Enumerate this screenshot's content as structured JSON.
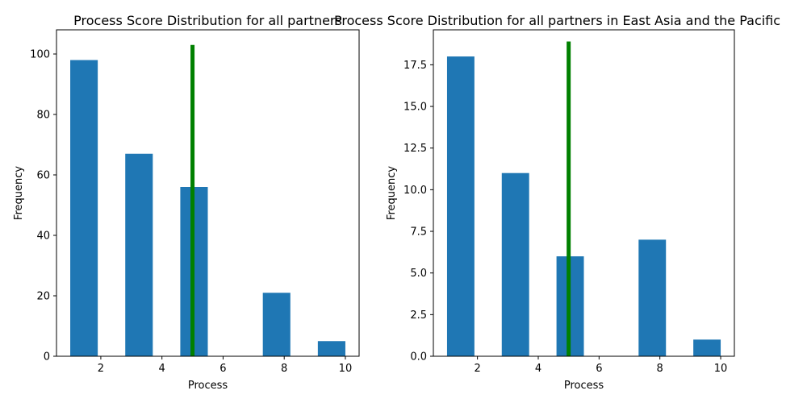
{
  "chart_data": [
    {
      "type": "bar",
      "title": "Process Score Distribution for all partners",
      "xlabel": "Process",
      "ylabel": "Frequency",
      "xlim": [
        0.55,
        10.45
      ],
      "ylim": [
        0,
        108
      ],
      "xticks": [
        "2",
        "4",
        "6",
        "8",
        "10"
      ],
      "yticks": [
        "0",
        "20",
        "40",
        "60",
        "80",
        "100"
      ],
      "bins": [
        {
          "x0": 1.0,
          "x1": 1.9,
          "value": 98
        },
        {
          "x0": 1.9,
          "x1": 2.8,
          "value": 0
        },
        {
          "x0": 2.8,
          "x1": 3.7,
          "value": 67
        },
        {
          "x0": 3.7,
          "x1": 4.6,
          "value": 0
        },
        {
          "x0": 4.6,
          "x1": 5.5,
          "value": 56
        },
        {
          "x0": 5.5,
          "x1": 6.4,
          "value": 0
        },
        {
          "x0": 6.4,
          "x1": 7.3,
          "value": 0
        },
        {
          "x0": 7.3,
          "x1": 8.2,
          "value": 21
        },
        {
          "x0": 8.2,
          "x1": 9.1,
          "value": 0
        },
        {
          "x0": 9.1,
          "x1": 10.0,
          "value": 5
        }
      ],
      "bar_color": "#1f77b4",
      "reference_line": {
        "x": 5.0,
        "y_top": 103,
        "color": "#008000"
      }
    },
    {
      "type": "bar",
      "title": "Process Score Distribution for all partners in East Asia and the Pacific",
      "xlabel": "Process",
      "ylabel": "Frequency",
      "xlim": [
        0.55,
        10.45
      ],
      "ylim": [
        0,
        19.6
      ],
      "xticks": [
        "2",
        "4",
        "6",
        "8",
        "10"
      ],
      "yticks": [
        "0.0",
        "2.5",
        "5.0",
        "7.5",
        "10.0",
        "12.5",
        "15.0",
        "17.5"
      ],
      "bins": [
        {
          "x0": 1.0,
          "x1": 1.9,
          "value": 18
        },
        {
          "x0": 1.9,
          "x1": 2.8,
          "value": 0
        },
        {
          "x0": 2.8,
          "x1": 3.7,
          "value": 11
        },
        {
          "x0": 3.7,
          "x1": 4.6,
          "value": 0
        },
        {
          "x0": 4.6,
          "x1": 5.5,
          "value": 6
        },
        {
          "x0": 5.5,
          "x1": 6.4,
          "value": 0
        },
        {
          "x0": 6.4,
          "x1": 7.3,
          "value": 0
        },
        {
          "x0": 7.3,
          "x1": 8.2,
          "value": 7
        },
        {
          "x0": 8.2,
          "x1": 9.1,
          "value": 0
        },
        {
          "x0": 9.1,
          "x1": 10.0,
          "value": 1
        }
      ],
      "bar_color": "#1f77b4",
      "reference_line": {
        "x": 5.0,
        "y_top": 18.9,
        "color": "#008000"
      }
    }
  ]
}
